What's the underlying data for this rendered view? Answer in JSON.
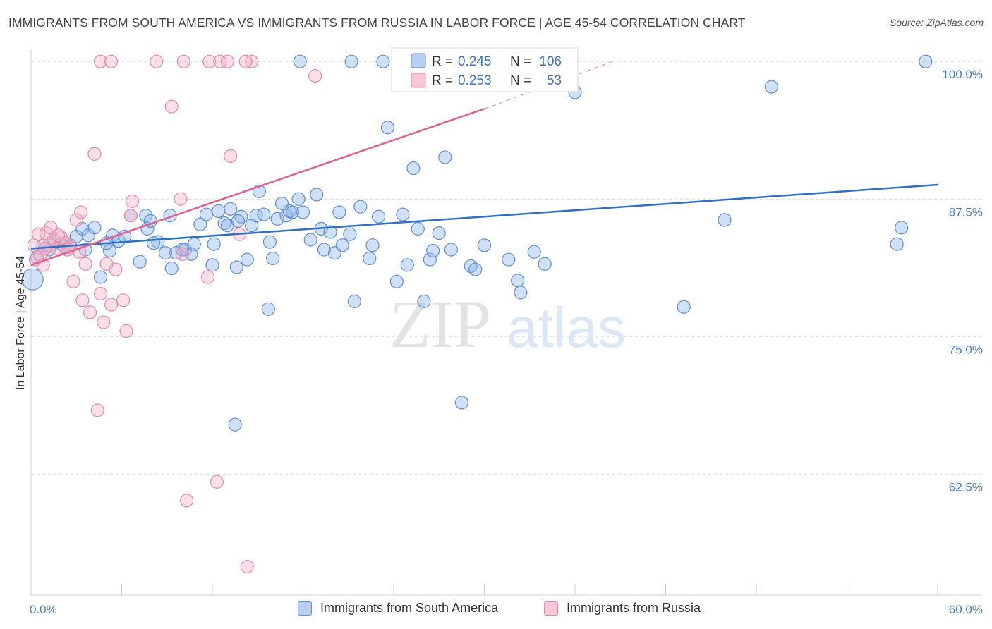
{
  "title": "IMMIGRANTS FROM SOUTH AMERICA VS IMMIGRANTS FROM RUSSIA IN LABOR FORCE | AGE 45-54 CORRELATION CHART",
  "source": "Source: ZipAtlas.com",
  "watermark": {
    "zip": "ZIP",
    "atlas": "atlas"
  },
  "chart_data": {
    "type": "scatter",
    "title": "IMMIGRANTS FROM SOUTH AMERICA VS IMMIGRANTS FROM RUSSIA IN LABOR FORCE | AGE 45-54 CORRELATION CHART",
    "xlabel": "",
    "ylabel": "In Labor Force | Age 45-54",
    "xlim": [
      0,
      60
    ],
    "ylim": [
      51.5,
      102
    ],
    "x_tick_labels": [
      "0.0%",
      "60.0%"
    ],
    "y_ticks": [
      62.5,
      75.0,
      87.5,
      100.0
    ],
    "y_tick_labels": [
      "62.5%",
      "75.0%",
      "87.5%",
      "100.0%"
    ],
    "grid": "horizontal dashed",
    "legend_placement": "bottom",
    "stats": [
      {
        "r_label": "R =",
        "r": "0.245",
        "n_label": "N =",
        "n": "106"
      },
      {
        "r_label": "R =",
        "r": "0.253",
        "n_label": "N =",
        "n": "53"
      }
    ],
    "series": [
      {
        "name": "Immigrants from South America",
        "color": "#8fb4ea",
        "edge": "#5f8fd8",
        "trend_color": "#2e6fcb",
        "trend": {
          "x0": 0,
          "y0": 83.0,
          "x1": 60,
          "y1": 88.8
        },
        "points": [
          [
            0.1,
            80.2,
            2
          ],
          [
            0.4,
            82.2,
            1
          ],
          [
            0.8,
            83.3,
            1
          ],
          [
            1.2,
            82.9,
            1
          ],
          [
            1.6,
            83.7,
            1
          ],
          [
            2.0,
            83.4,
            1
          ],
          [
            2.6,
            83.3,
            1
          ],
          [
            3.0,
            84.1,
            1
          ],
          [
            3.4,
            84.8,
            1
          ],
          [
            3.8,
            84.2,
            1
          ],
          [
            4.2,
            84.9,
            1
          ],
          [
            4.6,
            80.4,
            1
          ],
          [
            5.2,
            82.8,
            1
          ],
          [
            5.4,
            84.2,
            1
          ],
          [
            5.8,
            83.7,
            1
          ],
          [
            6.2,
            84.1,
            1
          ],
          [
            6.6,
            86.0,
            1
          ],
          [
            7.2,
            81.8,
            1
          ],
          [
            7.6,
            86.0,
            1
          ],
          [
            7.7,
            84.8,
            1
          ],
          [
            7.9,
            85.5,
            1
          ],
          [
            8.4,
            83.6,
            1
          ],
          [
            8.9,
            82.6,
            1
          ],
          [
            9.2,
            86.0,
            1
          ],
          [
            9.3,
            81.2,
            1
          ],
          [
            9.6,
            82.6,
            1
          ],
          [
            10.2,
            82.9,
            1
          ],
          [
            10.6,
            82.5,
            1
          ],
          [
            10.8,
            83.4,
            1
          ],
          [
            11.2,
            85.2,
            1
          ],
          [
            11.6,
            86.1,
            1
          ],
          [
            12.1,
            83.4,
            1
          ],
          [
            12.4,
            86.4,
            1
          ],
          [
            12.8,
            85.3,
            1
          ],
          [
            13.0,
            85.1,
            1
          ],
          [
            13.2,
            86.6,
            1
          ],
          [
            13.6,
            81.3,
            1
          ],
          [
            13.9,
            85.9,
            1
          ],
          [
            14.3,
            82.0,
            1
          ],
          [
            14.6,
            85.1,
            1
          ],
          [
            14.9,
            86.0,
            1
          ],
          [
            15.1,
            88.2,
            1
          ],
          [
            15.4,
            86.1,
            1
          ],
          [
            15.7,
            77.5,
            1
          ],
          [
            15.8,
            83.6,
            1
          ],
          [
            16.0,
            82.1,
            1
          ],
          [
            16.3,
            85.7,
            1
          ],
          [
            16.6,
            87.1,
            1
          ],
          [
            16.9,
            86.0,
            1
          ],
          [
            17.1,
            86.4,
            1
          ],
          [
            17.3,
            86.3,
            1
          ],
          [
            17.7,
            87.5,
            1
          ],
          [
            18.0,
            86.3,
            1
          ],
          [
            18.5,
            83.8,
            1
          ],
          [
            18.9,
            87.9,
            1
          ],
          [
            19.2,
            84.8,
            1
          ],
          [
            19.4,
            82.9,
            1
          ],
          [
            19.8,
            84.5,
            1
          ],
          [
            20.1,
            82.6,
            1
          ],
          [
            20.4,
            86.3,
            1
          ],
          [
            20.6,
            83.3,
            1
          ],
          [
            21.1,
            84.3,
            1
          ],
          [
            21.4,
            78.2,
            1
          ],
          [
            21.8,
            86.8,
            1
          ],
          [
            22.4,
            82.1,
            1
          ],
          [
            22.6,
            83.3,
            1
          ],
          [
            23.0,
            85.9,
            1
          ],
          [
            23.3,
            100.0,
            1
          ],
          [
            23.6,
            94.0,
            1
          ],
          [
            24.2,
            80.0,
            1
          ],
          [
            24.6,
            86.1,
            1
          ],
          [
            24.9,
            81.5,
            1
          ],
          [
            25.3,
            90.3,
            1
          ],
          [
            25.6,
            84.8,
            1
          ],
          [
            26.0,
            78.2,
            1
          ],
          [
            26.4,
            82.0,
            1
          ],
          [
            26.6,
            82.8,
            1
          ],
          [
            27.0,
            84.4,
            1
          ],
          [
            27.4,
            91.3,
            1
          ],
          [
            27.8,
            82.9,
            1
          ],
          [
            28.5,
            69.0,
            1
          ],
          [
            29.1,
            81.4,
            1
          ],
          [
            29.4,
            81.1,
            1
          ],
          [
            30.0,
            83.3,
            1
          ],
          [
            31.6,
            82.0,
            1
          ],
          [
            32.2,
            80.1,
            1
          ],
          [
            32.4,
            79.0,
            1
          ],
          [
            33.3,
            82.7,
            1
          ],
          [
            34.0,
            81.6,
            1
          ],
          [
            36.0,
            97.2,
            1
          ],
          [
            43.2,
            77.7,
            1
          ],
          [
            45.9,
            85.6,
            1
          ],
          [
            49.0,
            97.7,
            1
          ],
          [
            57.3,
            83.4,
            1
          ],
          [
            57.6,
            84.9,
            1
          ],
          [
            59.2,
            100.0,
            1
          ],
          [
            17.8,
            100.0,
            1
          ],
          [
            21.2,
            100.0,
            1
          ],
          [
            13.5,
            67.0,
            1
          ],
          [
            2.2,
            83.2,
            1
          ],
          [
            5.0,
            83.5,
            1
          ],
          [
            3.6,
            82.9,
            1
          ],
          [
            8.1,
            83.5,
            1
          ],
          [
            10.0,
            82.9,
            1
          ],
          [
            12.0,
            81.5,
            1
          ],
          [
            13.7,
            85.5,
            1
          ]
        ]
      },
      {
        "name": "Immigrants from Russia",
        "color": "#f5b3c8",
        "edge": "#e889a8",
        "trend_color": "#e0608c",
        "trend": {
          "x0": 0,
          "y0": 81.5,
          "x1": 30,
          "y1": 95.7
        },
        "trend_dashed": {
          "x0": 30,
          "y0": 95.7,
          "x1": 38.5,
          "y1": 100.0
        },
        "points": [
          [
            0.2,
            83.3,
            1
          ],
          [
            0.3,
            82.0,
            1
          ],
          [
            0.5,
            84.3,
            1
          ],
          [
            0.6,
            82.4,
            1
          ],
          [
            0.8,
            81.5,
            1
          ],
          [
            1.0,
            84.4,
            1
          ],
          [
            1.2,
            83.3,
            1
          ],
          [
            1.3,
            84.9,
            1
          ],
          [
            1.5,
            83.8,
            1
          ],
          [
            1.7,
            83.0,
            1
          ],
          [
            2.0,
            84.0,
            1
          ],
          [
            2.3,
            83.5,
            1
          ],
          [
            2.6,
            83.1,
            1
          ],
          [
            2.8,
            80.0,
            1
          ],
          [
            3.0,
            85.6,
            1
          ],
          [
            3.2,
            82.7,
            1
          ],
          [
            3.4,
            78.3,
            1
          ],
          [
            3.6,
            81.6,
            1
          ],
          [
            3.9,
            77.2,
            1
          ],
          [
            4.2,
            91.6,
            1
          ],
          [
            4.4,
            68.3,
            1
          ],
          [
            4.6,
            78.9,
            1
          ],
          [
            4.8,
            76.3,
            1
          ],
          [
            5.0,
            81.6,
            1
          ],
          [
            5.3,
            77.9,
            1
          ],
          [
            5.6,
            81.1,
            1
          ],
          [
            6.1,
            78.3,
            1
          ],
          [
            6.3,
            75.5,
            1
          ],
          [
            6.6,
            86.0,
            1
          ],
          [
            9.3,
            95.9,
            1
          ],
          [
            9.9,
            87.5,
            1
          ],
          [
            10.3,
            60.1,
            1
          ],
          [
            11.7,
            80.4,
            1
          ],
          [
            12.3,
            61.8,
            1
          ],
          [
            13.2,
            91.4,
            1
          ],
          [
            13.8,
            84.3,
            1
          ],
          [
            14.3,
            54.1,
            1
          ],
          [
            14.6,
            100.0,
            1
          ],
          [
            18.8,
            98.7,
            1
          ],
          [
            4.6,
            100.0,
            1
          ],
          [
            5.3,
            100.0,
            1
          ],
          [
            8.3,
            100.0,
            1
          ],
          [
            10.1,
            100.0,
            1
          ],
          [
            11.8,
            100.0,
            1
          ],
          [
            12.5,
            100.0,
            1
          ],
          [
            13.0,
            100.0,
            1
          ],
          [
            14.2,
            100.0,
            1
          ],
          [
            10.0,
            82.5,
            1
          ],
          [
            3.3,
            86.3,
            1
          ],
          [
            1.8,
            84.2,
            1
          ],
          [
            2.4,
            82.9,
            1
          ],
          [
            0.9,
            83.0,
            1
          ],
          [
            6.7,
            87.3,
            1
          ]
        ]
      }
    ]
  }
}
